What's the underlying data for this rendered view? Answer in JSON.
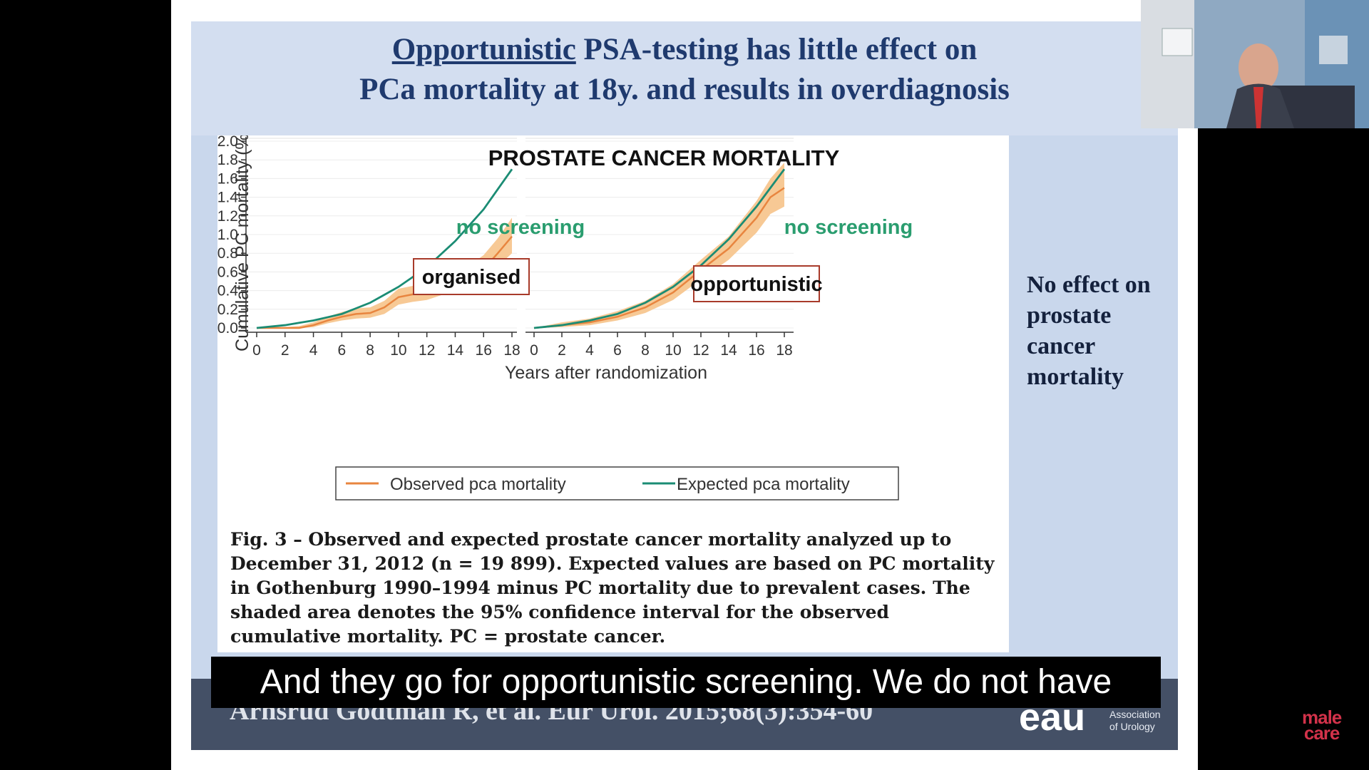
{
  "slide": {
    "title_underlined": "Opportunistic",
    "title_rest": " PSA-testing has little effect on",
    "title_line2": "PCa mortality at 18y. and results in overdiagnosis",
    "side_note": "No effect on prostate cancer mortality",
    "caption": "Fig. 3 – Observed and expected prostate cancer mortality analyzed up to December 31, 2012 (n = 19 899). Expected values are based on PC mortality in Gothenburg 1990–1994 minus PC mortality due to prevalent cases. The shaded area denotes the 95% confidence interval for the observed cumulative mortality. PC = prostate cancer.",
    "reference": "Arnsrud Godtman R, et al. Eur Urol. 2015;68(3):354-60",
    "logo_text_line1": "Association",
    "logo_text_line2": "of Urology",
    "logo_letters": "eau"
  },
  "subtitle": "And they go for opportunistic screening. We do not have",
  "brand": {
    "line1": "male",
    "line2": "care"
  },
  "colors": {
    "observed": "#e8853f",
    "ci_band": "#f7c995",
    "expected": "#1b8c74",
    "label_green": "#2a9d6f",
    "title_blue": "#1f3a6e",
    "box_border": "#a83a2a"
  },
  "chart_data": [
    {
      "type": "line",
      "panel_label": "organised",
      "chart_title": "PROSTATE CANCER MORTALITY",
      "expected_label": "no screening",
      "ylabel": "Cumulative PC mortality (%)",
      "xlabel": "Years after randomization",
      "xlim": [
        0,
        18
      ],
      "ylim": [
        0,
        2.0
      ],
      "xticks": [
        "0",
        "2",
        "4",
        "6",
        "8",
        "10",
        "12",
        "14",
        "16",
        "18"
      ],
      "yticks": [
        "0.0",
        "0.2",
        "0.4",
        "0.6",
        "0.8",
        "1.0",
        "1.2",
        "1.4",
        "1.6",
        "1.8",
        "2.0"
      ],
      "series": [
        {
          "name": "Observed pca mortality",
          "x": [
            0,
            2,
            3,
            4,
            5,
            6,
            7,
            8,
            9,
            10,
            11,
            12,
            13,
            14,
            15,
            16,
            17,
            18
          ],
          "y": [
            0,
            0,
            0,
            0.03,
            0.08,
            0.12,
            0.15,
            0.16,
            0.22,
            0.33,
            0.36,
            0.38,
            0.44,
            0.51,
            0.55,
            0.63,
            0.8,
            0.98
          ],
          "ci_lower": [
            0,
            0,
            0,
            0.01,
            0.05,
            0.08,
            0.1,
            0.11,
            0.15,
            0.25,
            0.28,
            0.3,
            0.35,
            0.4,
            0.44,
            0.5,
            0.66,
            0.8
          ],
          "ci_upper": [
            0,
            0.01,
            0.02,
            0.06,
            0.12,
            0.17,
            0.21,
            0.22,
            0.29,
            0.42,
            0.45,
            0.47,
            0.54,
            0.62,
            0.67,
            0.78,
            0.96,
            1.18
          ]
        },
        {
          "name": "Expected pca mortality",
          "x": [
            0,
            2,
            4,
            6,
            8,
            10,
            12,
            14,
            16,
            18
          ],
          "y": [
            0,
            0.03,
            0.08,
            0.15,
            0.27,
            0.44,
            0.65,
            0.93,
            1.27,
            1.7
          ]
        }
      ]
    },
    {
      "type": "line",
      "panel_label": "opportunistic",
      "expected_label": "no screening",
      "xlabel": "Years after randomization",
      "xlim": [
        0,
        18
      ],
      "ylim": [
        0,
        2.0
      ],
      "xticks": [
        "0",
        "2",
        "4",
        "6",
        "8",
        "10",
        "12",
        "14",
        "16",
        "18"
      ],
      "series": [
        {
          "name": "Observed pca mortality",
          "x": [
            0,
            2,
            4,
            6,
            8,
            10,
            12,
            14,
            16,
            17,
            18
          ],
          "y": [
            0,
            0.03,
            0.06,
            0.12,
            0.22,
            0.38,
            0.62,
            0.85,
            1.18,
            1.4,
            1.5
          ],
          "ci_lower": [
            0,
            0.01,
            0.03,
            0.08,
            0.16,
            0.3,
            0.52,
            0.73,
            1.02,
            1.22,
            1.3
          ],
          "ci_upper": [
            0,
            0.06,
            0.1,
            0.18,
            0.29,
            0.47,
            0.73,
            0.98,
            1.36,
            1.6,
            1.77
          ]
        },
        {
          "name": "Expected pca mortality",
          "x": [
            0,
            2,
            4,
            6,
            8,
            10,
            12,
            14,
            16,
            18
          ],
          "y": [
            0,
            0.03,
            0.08,
            0.15,
            0.27,
            0.44,
            0.67,
            0.95,
            1.3,
            1.7
          ]
        }
      ],
      "legend": [
        "Observed pca mortality",
        "Expected pca mortality"
      ]
    }
  ]
}
